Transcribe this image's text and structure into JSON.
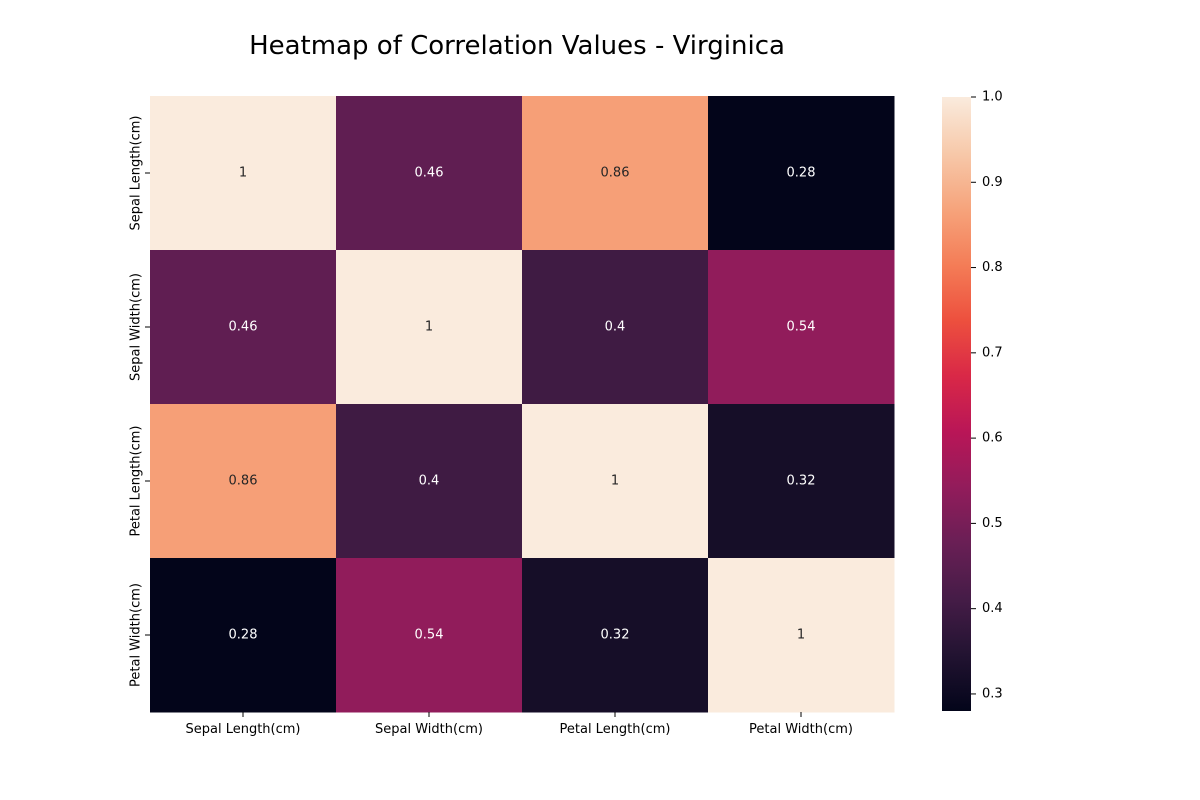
{
  "chart_data": {
    "type": "heatmap",
    "title": "Heatmap of Correlation Values - Virginica",
    "x_categories": [
      "Sepal Length(cm)",
      "Sepal Width(cm)",
      "Petal Length(cm)",
      "Petal Width(cm)"
    ],
    "y_categories": [
      "Sepal Length(cm)",
      "Sepal Width(cm)",
      "Petal Length(cm)",
      "Petal Width(cm)"
    ],
    "values": [
      [
        1,
        0.46,
        0.86,
        0.28
      ],
      [
        0.46,
        1,
        0.4,
        0.54
      ],
      [
        0.86,
        0.4,
        1,
        0.32
      ],
      [
        0.28,
        0.54,
        0.32,
        1
      ]
    ],
    "value_labels": [
      [
        "1",
        "0.46",
        "0.86",
        "0.28"
      ],
      [
        "0.46",
        "1",
        "0.4",
        "0.54"
      ],
      [
        "0.86",
        "0.4",
        "1",
        "0.32"
      ],
      [
        "0.28",
        "0.54",
        "0.32",
        "1"
      ]
    ],
    "colorbar": {
      "min": 0.28,
      "max": 1.0,
      "ticks": [
        0.3,
        0.4,
        0.5,
        0.6,
        0.7,
        0.8,
        0.9,
        1.0
      ],
      "tick_labels": [
        "0.3",
        "0.4",
        "0.5",
        "0.6",
        "0.7",
        "0.8",
        "0.9",
        "1.0"
      ],
      "colormap": "rocket",
      "stops": [
        "#03051a",
        "#221331",
        "#451c47",
        "#691f55",
        "#921c5b",
        "#b91657",
        "#d92847",
        "#ed503e",
        "#f47d57",
        "#f6a47c",
        "#f7c9aa",
        "#faebdd"
      ]
    },
    "grid": false,
    "legend": "colorbar-right"
  }
}
